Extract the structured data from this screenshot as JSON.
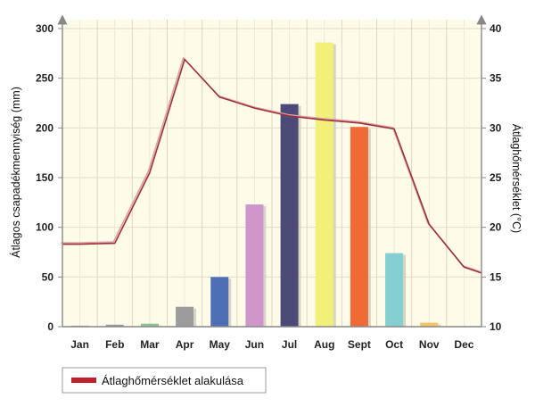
{
  "chart_data": {
    "type": "bar",
    "categories": [
      "Jan",
      "Feb",
      "Mar",
      "Apr",
      "May",
      "Jun",
      "Jul",
      "Aug",
      "Sept",
      "Oct",
      "Nov",
      "Dec"
    ],
    "series": [
      {
        "kind": "bar",
        "axis": "left",
        "values": [
          1,
          2,
          3,
          20,
          50,
          123,
          224,
          286,
          201,
          74,
          4,
          0
        ],
        "colors": [
          "#c98fb0",
          "#9a9a9a",
          "#8fc08f",
          "#9c9c9c",
          "#4e6fb5",
          "#cf96cc",
          "#4b4a78",
          "#f3f07a",
          "#ef6a35",
          "#84cfd0",
          "#f2c46a",
          "#cccccc"
        ]
      },
      {
        "kind": "line",
        "axis": "right",
        "name": "Átlaghőmérséklet alakulása",
        "values": [
          18.3,
          18.4,
          25.5,
          36.9,
          33.1,
          32.0,
          31.2,
          30.8,
          30.5,
          29.9,
          20.3,
          16.0
        ],
        "color": "#a0303c"
      }
    ],
    "ylabel": "Átlagos csapadékmennyiség (mm)",
    "ylim": [
      0,
      300
    ],
    "yticks": [
      "0",
      "50",
      "100",
      "150",
      "200",
      "250",
      "300"
    ],
    "y2label": "Átlaghőmérséklet (°C)",
    "y2lim": [
      10,
      40
    ],
    "y2ticks": [
      "10",
      "15",
      "20",
      "25",
      "30",
      "35",
      "40"
    ],
    "grid": true,
    "legend_position": "bottom-left"
  }
}
